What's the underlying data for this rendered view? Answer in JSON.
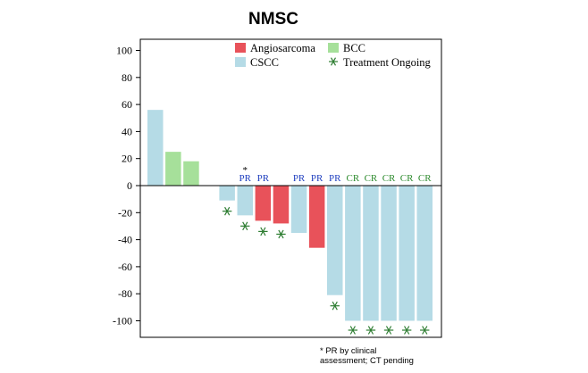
{
  "chart_data": {
    "type": "bar",
    "title": "NMSC",
    "xlabel": "",
    "ylabel": "",
    "ylim": [
      -110,
      110
    ],
    "yticks": [
      100,
      80,
      60,
      40,
      20,
      0,
      -20,
      -40,
      -60,
      -80,
      -100
    ],
    "grid": false,
    "legend_position": "top-right",
    "colors": {
      "Angiosarcoma": "#e8525a",
      "BCC": "#a6e09a",
      "CSCC": "#b5dbe6",
      "Treatment Ongoing": "#2e7d32",
      "PR": "#1f3fbf",
      "CR": "#2e8b2e"
    },
    "legend": [
      {
        "label": "Angiosarcoma",
        "kind": "square",
        "color": "#e8525a"
      },
      {
        "label": "BCC",
        "kind": "square",
        "color": "#a6e09a"
      },
      {
        "label": "CSCC",
        "kind": "square",
        "color": "#b5dbe6"
      },
      {
        "label": "Treatment Ongoing",
        "kind": "asterisk",
        "color": "#2e7d32"
      }
    ],
    "bars": [
      {
        "type": "CSCC",
        "value": 56,
        "response": "",
        "ongoing": false
      },
      {
        "type": "BCC",
        "value": 25,
        "response": "",
        "ongoing": false
      },
      {
        "type": "BCC",
        "value": 18,
        "response": "",
        "ongoing": false
      },
      {
        "type": "CSCC",
        "value": 0,
        "response": "",
        "ongoing": false
      },
      {
        "type": "CSCC",
        "value": -11,
        "response": "",
        "ongoing": true
      },
      {
        "type": "CSCC",
        "value": -22,
        "response": "PR",
        "ongoing": true,
        "note": "*"
      },
      {
        "type": "Angiosarcoma",
        "value": -26,
        "response": "PR",
        "ongoing": true
      },
      {
        "type": "Angiosarcoma",
        "value": -28,
        "response": "",
        "ongoing": true
      },
      {
        "type": "CSCC",
        "value": -35,
        "response": "PR",
        "ongoing": false
      },
      {
        "type": "Angiosarcoma",
        "value": -46,
        "response": "PR",
        "ongoing": false
      },
      {
        "type": "CSCC",
        "value": -81,
        "response": "PR",
        "ongoing": true
      },
      {
        "type": "CSCC",
        "value": -100,
        "response": "CR",
        "ongoing": true
      },
      {
        "type": "CSCC",
        "value": -100,
        "response": "CR",
        "ongoing": true
      },
      {
        "type": "CSCC",
        "value": -100,
        "response": "CR",
        "ongoing": true
      },
      {
        "type": "CSCC",
        "value": -100,
        "response": "CR",
        "ongoing": true
      },
      {
        "type": "CSCC",
        "value": -100,
        "response": "CR",
        "ongoing": true
      }
    ],
    "footnote": [
      "* PR by clinical",
      "assessment; CT pending"
    ]
  }
}
